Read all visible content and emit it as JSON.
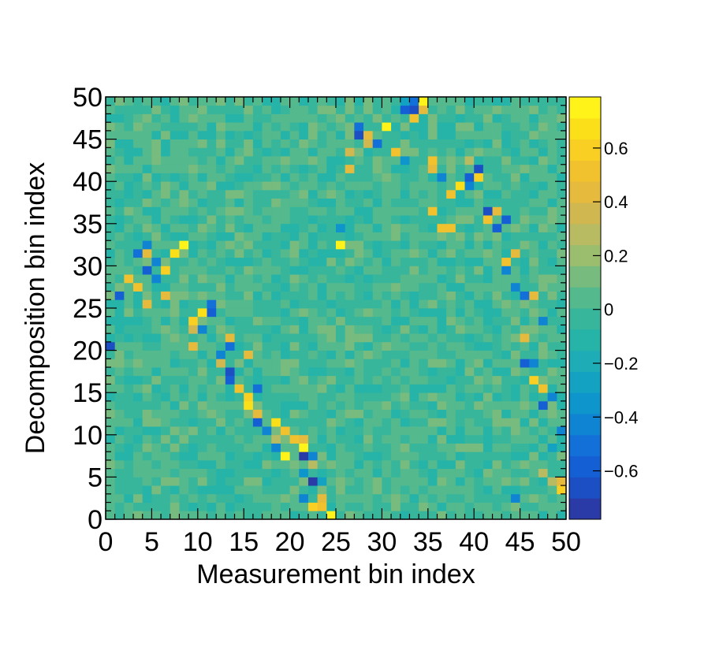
{
  "chart_data": {
    "type": "heatmap",
    "title": "",
    "xlabel": "Measurement bin index",
    "ylabel": "Decomposition bin index",
    "xlim": [
      0,
      50
    ],
    "ylim": [
      0,
      50
    ],
    "nbins_x": 50,
    "nbins_y": 50,
    "x_tick_labels": [
      "0",
      "5",
      "10",
      "15",
      "20",
      "25",
      "30",
      "35",
      "40",
      "45",
      "50"
    ],
    "y_tick_labels": [
      "0",
      "5",
      "10",
      "15",
      "20",
      "25",
      "30",
      "35",
      "40",
      "45",
      "50"
    ],
    "zlim": [
      -0.78,
      0.79
    ],
    "colorbar_tick_values": [
      0.6,
      0.4,
      0.2,
      0,
      -0.2,
      -0.4,
      -0.6
    ],
    "colorbar_tick_labels": [
      "0.6",
      "0.4",
      "0.2",
      "0",
      "−0.2",
      "−0.4",
      "−0.6"
    ],
    "palette": [
      "#2a3aa6",
      "#1d4fc4",
      "#155fd4",
      "#1270d8",
      "#0f84d2",
      "#0e95cc",
      "#14a2c2",
      "#1eadb6",
      "#26b3a8",
      "#38b69c",
      "#55b98e",
      "#78bb7e",
      "#9bbd6e",
      "#b9bb62",
      "#d1b74f",
      "#e6ba3c",
      "#f2c12e",
      "#f8cf22",
      "#fbe019",
      "#fff31a"
    ],
    "background_value": 0,
    "strong_cells": [
      {
        "x": 24,
        "y": 0,
        "v": 0.78
      },
      {
        "x": 22,
        "y": 1,
        "v": 0.6
      },
      {
        "x": 23,
        "y": 1,
        "v": 0.55
      },
      {
        "x": 21,
        "y": 2,
        "v": -0.4
      },
      {
        "x": 23,
        "y": 2,
        "v": 0.45
      },
      {
        "x": 49,
        "y": 3,
        "v": 0.6
      },
      {
        "x": 23,
        "y": 4,
        "v": -0.3
      },
      {
        "x": 21,
        "y": 5,
        "v": -0.35
      },
      {
        "x": 22,
        "y": 4,
        "v": -0.75
      },
      {
        "x": 22,
        "y": 6,
        "v": 0.25
      },
      {
        "x": 21,
        "y": 7,
        "v": -0.75
      },
      {
        "x": 22,
        "y": 7,
        "v": -0.45
      },
      {
        "x": 19,
        "y": 7,
        "v": 0.75
      },
      {
        "x": 18,
        "y": 8,
        "v": -0.4
      },
      {
        "x": 21,
        "y": 8,
        "v": 0.75
      },
      {
        "x": 20,
        "y": 9,
        "v": 0.55
      },
      {
        "x": 21,
        "y": 9,
        "v": 0.45
      },
      {
        "x": 18,
        "y": 9,
        "v": 0.3
      },
      {
        "x": 19,
        "y": 10,
        "v": 0.55
      },
      {
        "x": 17,
        "y": 10,
        "v": -0.45
      },
      {
        "x": 16,
        "y": 11,
        "v": -0.6
      },
      {
        "x": 18,
        "y": 11,
        "v": 0.65
      },
      {
        "x": 16,
        "y": 12,
        "v": 0.4
      },
      {
        "x": 15,
        "y": 13,
        "v": 0.7
      },
      {
        "x": 15,
        "y": 14,
        "v": 0.6
      },
      {
        "x": 16,
        "y": 15,
        "v": -0.5
      },
      {
        "x": 14,
        "y": 15,
        "v": 0.55
      },
      {
        "x": 13,
        "y": 16,
        "v": -0.55
      },
      {
        "x": 13,
        "y": 17,
        "v": -0.7
      },
      {
        "x": 12,
        "y": 18,
        "v": 0.35
      },
      {
        "x": 15,
        "y": 19,
        "v": 0.4
      },
      {
        "x": 12,
        "y": 19,
        "v": -0.45
      },
      {
        "x": 13,
        "y": 20,
        "v": -0.5
      },
      {
        "x": 9,
        "y": 20,
        "v": 0.4
      },
      {
        "x": 0,
        "y": 20,
        "v": -0.7
      },
      {
        "x": 13,
        "y": 21,
        "v": 0.45
      },
      {
        "x": 10,
        "y": 22,
        "v": -0.45
      },
      {
        "x": 9,
        "y": 22,
        "v": 0.35
      },
      {
        "x": 9,
        "y": 23,
        "v": 0.6
      },
      {
        "x": 10,
        "y": 24,
        "v": 0.7
      },
      {
        "x": 11,
        "y": 24,
        "v": -0.55
      },
      {
        "x": 11,
        "y": 25,
        "v": -0.5
      },
      {
        "x": 6,
        "y": 26,
        "v": 0.45
      },
      {
        "x": 4,
        "y": 25,
        "v": 0.4
      },
      {
        "x": 1,
        "y": 26,
        "v": -0.6
      },
      {
        "x": 3,
        "y": 27,
        "v": 0.55
      },
      {
        "x": 2,
        "y": 28,
        "v": 0.5
      },
      {
        "x": 5,
        "y": 28,
        "v": -0.45
      },
      {
        "x": 6,
        "y": 29,
        "v": 0.6
      },
      {
        "x": 4,
        "y": 29,
        "v": -0.6
      },
      {
        "x": 5,
        "y": 30,
        "v": -0.45
      },
      {
        "x": 7,
        "y": 31,
        "v": 0.7
      },
      {
        "x": 3,
        "y": 31,
        "v": -0.5
      },
      {
        "x": 4,
        "y": 31,
        "v": 0.4
      },
      {
        "x": 8,
        "y": 32,
        "v": 0.78
      },
      {
        "x": 4,
        "y": 32,
        "v": -0.4
      },
      {
        "x": 25,
        "y": 32,
        "v": 0.78
      },
      {
        "x": 25,
        "y": 34,
        "v": -0.35
      },
      {
        "x": 36,
        "y": 34,
        "v": 0.5
      },
      {
        "x": 37,
        "y": 34,
        "v": 0.5
      },
      {
        "x": 41,
        "y": 35,
        "v": 0.55
      },
      {
        "x": 43,
        "y": 35,
        "v": -0.55
      },
      {
        "x": 42,
        "y": 34,
        "v": -0.6
      },
      {
        "x": 42,
        "y": 36,
        "v": 0.45
      },
      {
        "x": 41,
        "y": 36,
        "v": -0.7
      },
      {
        "x": 35,
        "y": 36,
        "v": 0.5
      },
      {
        "x": 37,
        "y": 38,
        "v": 0.55
      },
      {
        "x": 38,
        "y": 39,
        "v": 0.7
      },
      {
        "x": 39,
        "y": 39,
        "v": -0.45
      },
      {
        "x": 40,
        "y": 40,
        "v": 0.6
      },
      {
        "x": 39,
        "y": 40,
        "v": -0.55
      },
      {
        "x": 40,
        "y": 41,
        "v": -0.65
      },
      {
        "x": 36,
        "y": 40,
        "v": -0.45
      },
      {
        "x": 35,
        "y": 41,
        "v": 0.45
      },
      {
        "x": 32,
        "y": 42,
        "v": -0.35
      },
      {
        "x": 26,
        "y": 41,
        "v": 0.45
      },
      {
        "x": 26,
        "y": 43,
        "v": 0.35
      },
      {
        "x": 35,
        "y": 42,
        "v": 0.55
      },
      {
        "x": 31,
        "y": 43,
        "v": 0.5
      },
      {
        "x": 29,
        "y": 44,
        "v": -0.5
      },
      {
        "x": 28,
        "y": 45,
        "v": 0.45
      },
      {
        "x": 27,
        "y": 45,
        "v": -0.7
      },
      {
        "x": 28,
        "y": 44,
        "v": 0.35
      },
      {
        "x": 30,
        "y": 46,
        "v": 0.78
      },
      {
        "x": 27,
        "y": 46,
        "v": -0.5
      },
      {
        "x": 33,
        "y": 47,
        "v": 0.5
      },
      {
        "x": 32,
        "y": 48,
        "v": -0.6
      },
      {
        "x": 33,
        "y": 48,
        "v": -0.7
      },
      {
        "x": 34,
        "y": 48,
        "v": 0.45
      },
      {
        "x": 34,
        "y": 49,
        "v": 0.78
      },
      {
        "x": 33,
        "y": 49,
        "v": -0.5
      },
      {
        "x": 32,
        "y": 49,
        "v": -0.3
      },
      {
        "x": 39,
        "y": 42,
        "v": 0.3
      },
      {
        "x": 44,
        "y": 31,
        "v": 0.45
      },
      {
        "x": 43,
        "y": 30,
        "v": 0.5
      },
      {
        "x": 43,
        "y": 29,
        "v": -0.45
      },
      {
        "x": 44,
        "y": 27,
        "v": -0.4
      },
      {
        "x": 45,
        "y": 26,
        "v": -0.5
      },
      {
        "x": 46,
        "y": 26,
        "v": 0.45
      },
      {
        "x": 47,
        "y": 23,
        "v": -0.45
      },
      {
        "x": 45,
        "y": 21,
        "v": 0.45
      },
      {
        "x": 45,
        "y": 18,
        "v": -0.6
      },
      {
        "x": 46,
        "y": 18,
        "v": -0.45
      },
      {
        "x": 46,
        "y": 16,
        "v": 0.6
      },
      {
        "x": 47,
        "y": 15,
        "v": 0.55
      },
      {
        "x": 48,
        "y": 14,
        "v": -0.45
      },
      {
        "x": 47,
        "y": 13,
        "v": -0.6
      },
      {
        "x": 49,
        "y": 10,
        "v": -0.4
      },
      {
        "x": 48,
        "y": 8,
        "v": -0.3
      },
      {
        "x": 49,
        "y": 4,
        "v": 0.45
      },
      {
        "x": 48,
        "y": 4,
        "v": 0.3
      },
      {
        "x": 44,
        "y": 2,
        "v": -0.45
      },
      {
        "x": 47,
        "y": 5,
        "v": 0.25
      }
    ]
  }
}
